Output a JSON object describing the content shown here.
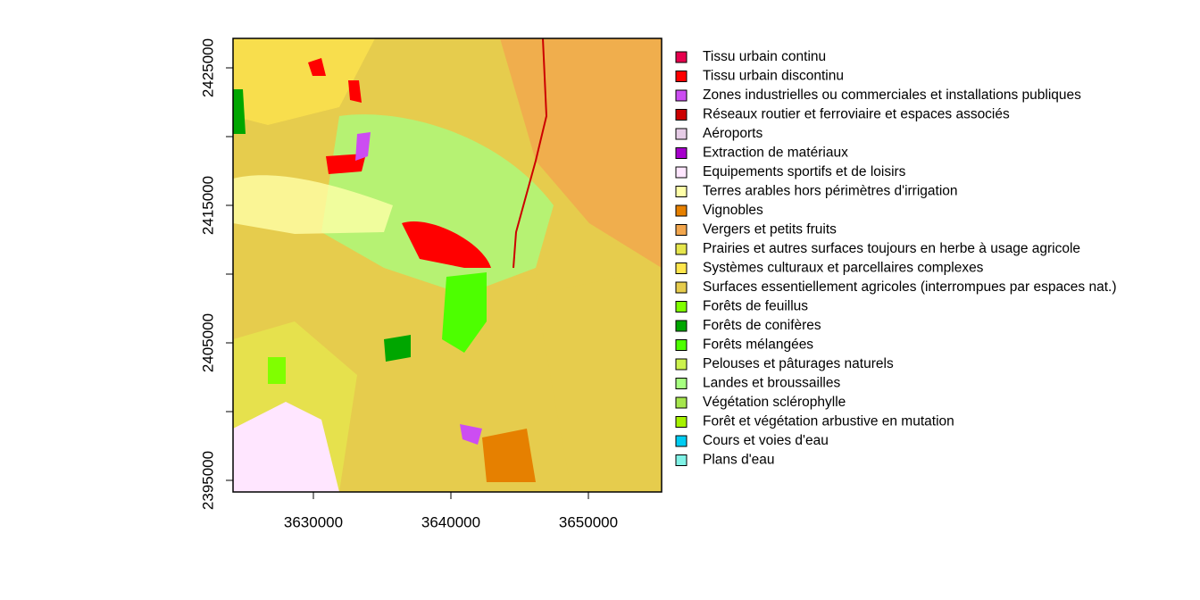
{
  "chart_data": {
    "type": "raster-map",
    "xlim": [
      3624156,
      3655325
    ],
    "ylim": [
      2394156,
      2427143
    ],
    "xticks": [
      3630000,
      3640000,
      3650000
    ],
    "yticks": [
      2395000,
      {
        "value": 2400000,
        "label": null
      },
      2405000,
      {
        "value": 2410000,
        "label": null
      },
      2415000,
      {
        "value": 2420000,
        "label": null
      },
      2425000
    ],
    "legend": [
      {
        "name": "Tissu urbain continu",
        "color": "#e6004d"
      },
      {
        "name": "Tissu urbain discontinu",
        "color": "#ff0000"
      },
      {
        "name": "Zones industrielles ou commerciales et installations publiques",
        "color": "#cc4df2"
      },
      {
        "name": "Réseaux routier et ferroviaire et espaces associés",
        "color": "#cc0000"
      },
      {
        "name": "Aéroports",
        "color": "#e6cce6"
      },
      {
        "name": "Extraction de matériaux",
        "color": "#a600cc"
      },
      {
        "name": "Equipements sportifs et de loisirs",
        "color": "#ffe6ff"
      },
      {
        "name": "Terres arables hors périmètres d'irrigation",
        "color": "#ffffa8"
      },
      {
        "name": "Vignobles",
        "color": "#e68000"
      },
      {
        "name": "Vergers et petits fruits",
        "color": "#f2a64d"
      },
      {
        "name": "Prairies et autres surfaces toujours en herbe à usage agricole",
        "color": "#e6e64d"
      },
      {
        "name": "Systèmes culturaux et parcellaires complexes",
        "color": "#ffe64d"
      },
      {
        "name": "Surfaces essentiellement agricoles (interrompues par espaces nat.)",
        "color": "#e6cc4d"
      },
      {
        "name": "Forêts de feuillus",
        "color": "#80ff00"
      },
      {
        "name": "Forêts de conifères",
        "color": "#00a600"
      },
      {
        "name": "Forêts mélangées",
        "color": "#4dff00"
      },
      {
        "name": "Pelouses et pâturages naturels",
        "color": "#ccf24d"
      },
      {
        "name": "Landes et broussailles",
        "color": "#a6ff80"
      },
      {
        "name": "Végétation sclérophylle",
        "color": "#a6e64d"
      },
      {
        "name": "Forêt et végétation arbustive en mutation",
        "color": "#a6f200"
      },
      {
        "name": "Cours et voies d'eau",
        "color": "#00ccf2"
      },
      {
        "name": "Plans d'eau",
        "color": "#80f2e6"
      }
    ]
  }
}
